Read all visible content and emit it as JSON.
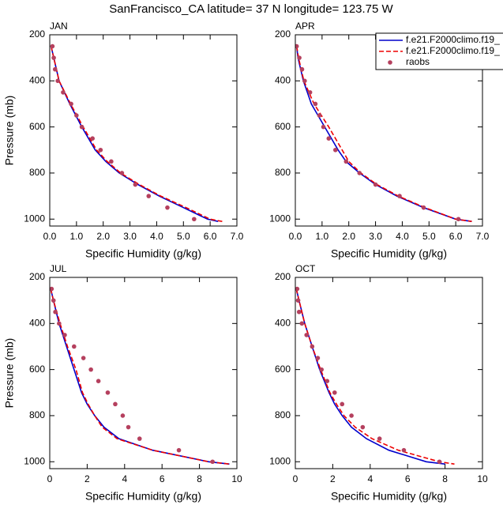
{
  "title": "SanFrancisco_CA  latitude= 37 N longitude= 123.75 W",
  "chart_data": [
    {
      "type": "line",
      "title": "JAN",
      "xlabel": "Specific Humidity (g/kg)",
      "ylabel": "Pressure (mb)",
      "xlim": [
        0,
        7
      ],
      "xticks": [
        {
          "value": 0,
          "label": "0.0"
        },
        {
          "value": 1,
          "label": "1.0"
        },
        {
          "value": 2,
          "label": "2.0"
        },
        {
          "value": 3,
          "label": "3.0"
        },
        {
          "value": 4,
          "label": "4.0"
        },
        {
          "value": 5,
          "label": "5.0"
        },
        {
          "value": 6,
          "label": "6.0"
        },
        {
          "value": 7,
          "label": "7.0"
        }
      ],
      "ylim": [
        1030,
        200
      ],
      "yticks": [
        200,
        400,
        600,
        800,
        1000
      ],
      "series": [
        {
          "color": "#0000cc",
          "style": "solid",
          "x": [
            0.05,
            0.15,
            0.35,
            0.75,
            1.2,
            1.7,
            2.1,
            2.6,
            3.3,
            4.1,
            5.0,
            5.9,
            6.3
          ],
          "values": [
            250,
            300,
            400,
            500,
            600,
            700,
            750,
            800,
            850,
            900,
            950,
            1000,
            1010
          ]
        },
        {
          "color": "#ee0000",
          "style": "dashed",
          "x": [
            0.05,
            0.15,
            0.35,
            0.78,
            1.25,
            1.75,
            2.15,
            2.65,
            3.35,
            4.15,
            5.1,
            6.0,
            6.45
          ],
          "values": [
            250,
            300,
            400,
            500,
            600,
            700,
            750,
            800,
            850,
            900,
            950,
            1000,
            1010
          ]
        },
        {
          "color": "#b5405e",
          "style": "dots",
          "x": [
            0.1,
            0.15,
            0.2,
            0.3,
            0.5,
            0.8,
            1.0,
            1.2,
            1.6,
            1.9,
            2.3,
            2.7,
            3.2,
            3.7,
            4.4,
            5.4
          ],
          "values": [
            250,
            300,
            350,
            400,
            450,
            500,
            550,
            600,
            650,
            700,
            750,
            800,
            850,
            900,
            950,
            1000
          ]
        }
      ]
    },
    {
      "type": "line",
      "title": "APR",
      "xlabel": "Specific Humidity (g/kg)",
      "legend": "upper right",
      "xlim": [
        0,
        7
      ],
      "xticks": [
        {
          "value": 0,
          "label": "0.0"
        },
        {
          "value": 1,
          "label": "1.0"
        },
        {
          "value": 2,
          "label": "2.0"
        },
        {
          "value": 3,
          "label": "3.0"
        },
        {
          "value": 4,
          "label": "4.0"
        },
        {
          "value": 5,
          "label": "5.0"
        },
        {
          "value": 6,
          "label": "6.0"
        },
        {
          "value": 7,
          "label": "7.0"
        }
      ],
      "ylim": [
        1030,
        200
      ],
      "yticks": [
        200,
        400,
        600,
        800,
        1000
      ],
      "series": [
        {
          "name": "f.e21.F2000climo.f19_",
          "color": "#0000cc",
          "style": "solid",
          "x": [
            0.05,
            0.1,
            0.3,
            0.6,
            1.1,
            1.6,
            1.9,
            2.4,
            3.0,
            3.8,
            4.8,
            6.0,
            6.6
          ],
          "values": [
            250,
            300,
            400,
            500,
            600,
            700,
            750,
            800,
            850,
            900,
            950,
            1000,
            1010
          ]
        },
        {
          "name": "f.e21.F2000climo.f19_",
          "color": "#ee0000",
          "style": "dashed",
          "x": [
            0.05,
            0.12,
            0.32,
            0.7,
            1.25,
            1.75,
            2.0,
            2.45,
            3.05,
            3.85,
            4.85,
            6.0,
            6.6
          ],
          "values": [
            250,
            300,
            400,
            500,
            600,
            700,
            750,
            800,
            850,
            900,
            950,
            1000,
            1010
          ]
        },
        {
          "name": "raobs",
          "color": "#b5405e",
          "style": "dots",
          "x": [
            0.05,
            0.15,
            0.25,
            0.35,
            0.55,
            0.75,
            0.9,
            1.05,
            1.25,
            1.5,
            1.9,
            2.4,
            3.0,
            3.9,
            4.8,
            6.1
          ],
          "values": [
            250,
            300,
            350,
            400,
            450,
            500,
            550,
            600,
            650,
            700,
            750,
            800,
            850,
            900,
            950,
            1000
          ]
        }
      ]
    },
    {
      "type": "line",
      "title": "JUL",
      "xlabel": "Specific Humidity (g/kg)",
      "ylabel": "Pressure (mb)",
      "xlim": [
        0,
        10
      ],
      "xticks": [
        0,
        2,
        4,
        6,
        8,
        10
      ],
      "ylim": [
        1030,
        200
      ],
      "yticks": [
        200,
        400,
        600,
        800,
        1000
      ],
      "series": [
        {
          "color": "#0000cc",
          "style": "solid",
          "x": [
            0.05,
            0.2,
            0.5,
            0.9,
            1.3,
            1.7,
            2.0,
            2.4,
            2.9,
            3.7,
            5.5,
            8.5,
            9.6
          ],
          "values": [
            250,
            300,
            400,
            500,
            600,
            700,
            750,
            800,
            850,
            900,
            950,
            1000,
            1010
          ]
        },
        {
          "color": "#ee0000",
          "style": "dashed",
          "x": [
            0.05,
            0.2,
            0.55,
            0.95,
            1.4,
            1.75,
            2.05,
            2.4,
            2.8,
            3.6,
            5.5,
            8.5,
            9.6
          ],
          "values": [
            250,
            300,
            400,
            500,
            600,
            700,
            750,
            800,
            850,
            900,
            950,
            1000,
            1010
          ]
        },
        {
          "color": "#b5405e",
          "style": "dots",
          "x": [
            0.1,
            0.2,
            0.3,
            0.5,
            0.8,
            1.3,
            1.8,
            2.2,
            2.6,
            3.1,
            3.5,
            3.9,
            4.2,
            4.8,
            6.9,
            8.7
          ],
          "values": [
            250,
            300,
            350,
            400,
            450,
            500,
            550,
            600,
            650,
            700,
            750,
            800,
            850,
            900,
            950,
            1000
          ]
        }
      ]
    },
    {
      "type": "line",
      "title": "OCT",
      "xlabel": "Specific Humidity (g/kg)",
      "xlim": [
        0,
        10
      ],
      "xticks": [
        0,
        2,
        4,
        6,
        8,
        10
      ],
      "ylim": [
        1030,
        200
      ],
      "yticks": [
        200,
        400,
        600,
        800,
        1000
      ],
      "series": [
        {
          "color": "#0000cc",
          "style": "solid",
          "x": [
            0.05,
            0.2,
            0.5,
            0.9,
            1.3,
            1.8,
            2.1,
            2.5,
            3.0,
            3.8,
            5.0,
            7.0,
            8.0
          ],
          "values": [
            250,
            300,
            400,
            500,
            600,
            700,
            750,
            800,
            850,
            900,
            950,
            1000,
            1010
          ]
        },
        {
          "color": "#ee0000",
          "style": "dashed",
          "x": [
            0.05,
            0.2,
            0.5,
            0.9,
            1.35,
            1.85,
            2.2,
            2.6,
            3.2,
            4.1,
            5.5,
            7.7,
            8.5
          ],
          "values": [
            250,
            300,
            400,
            500,
            600,
            700,
            750,
            800,
            850,
            900,
            950,
            1000,
            1010
          ]
        },
        {
          "color": "#b5405e",
          "style": "dots",
          "x": [
            0.1,
            0.15,
            0.2,
            0.35,
            0.6,
            0.9,
            1.2,
            1.4,
            1.7,
            2.1,
            2.5,
            3.0,
            3.6,
            4.5,
            5.8,
            7.7
          ],
          "values": [
            250,
            300,
            350,
            400,
            450,
            500,
            550,
            600,
            650,
            700,
            750,
            800,
            850,
            900,
            950,
            1000
          ]
        }
      ]
    }
  ]
}
